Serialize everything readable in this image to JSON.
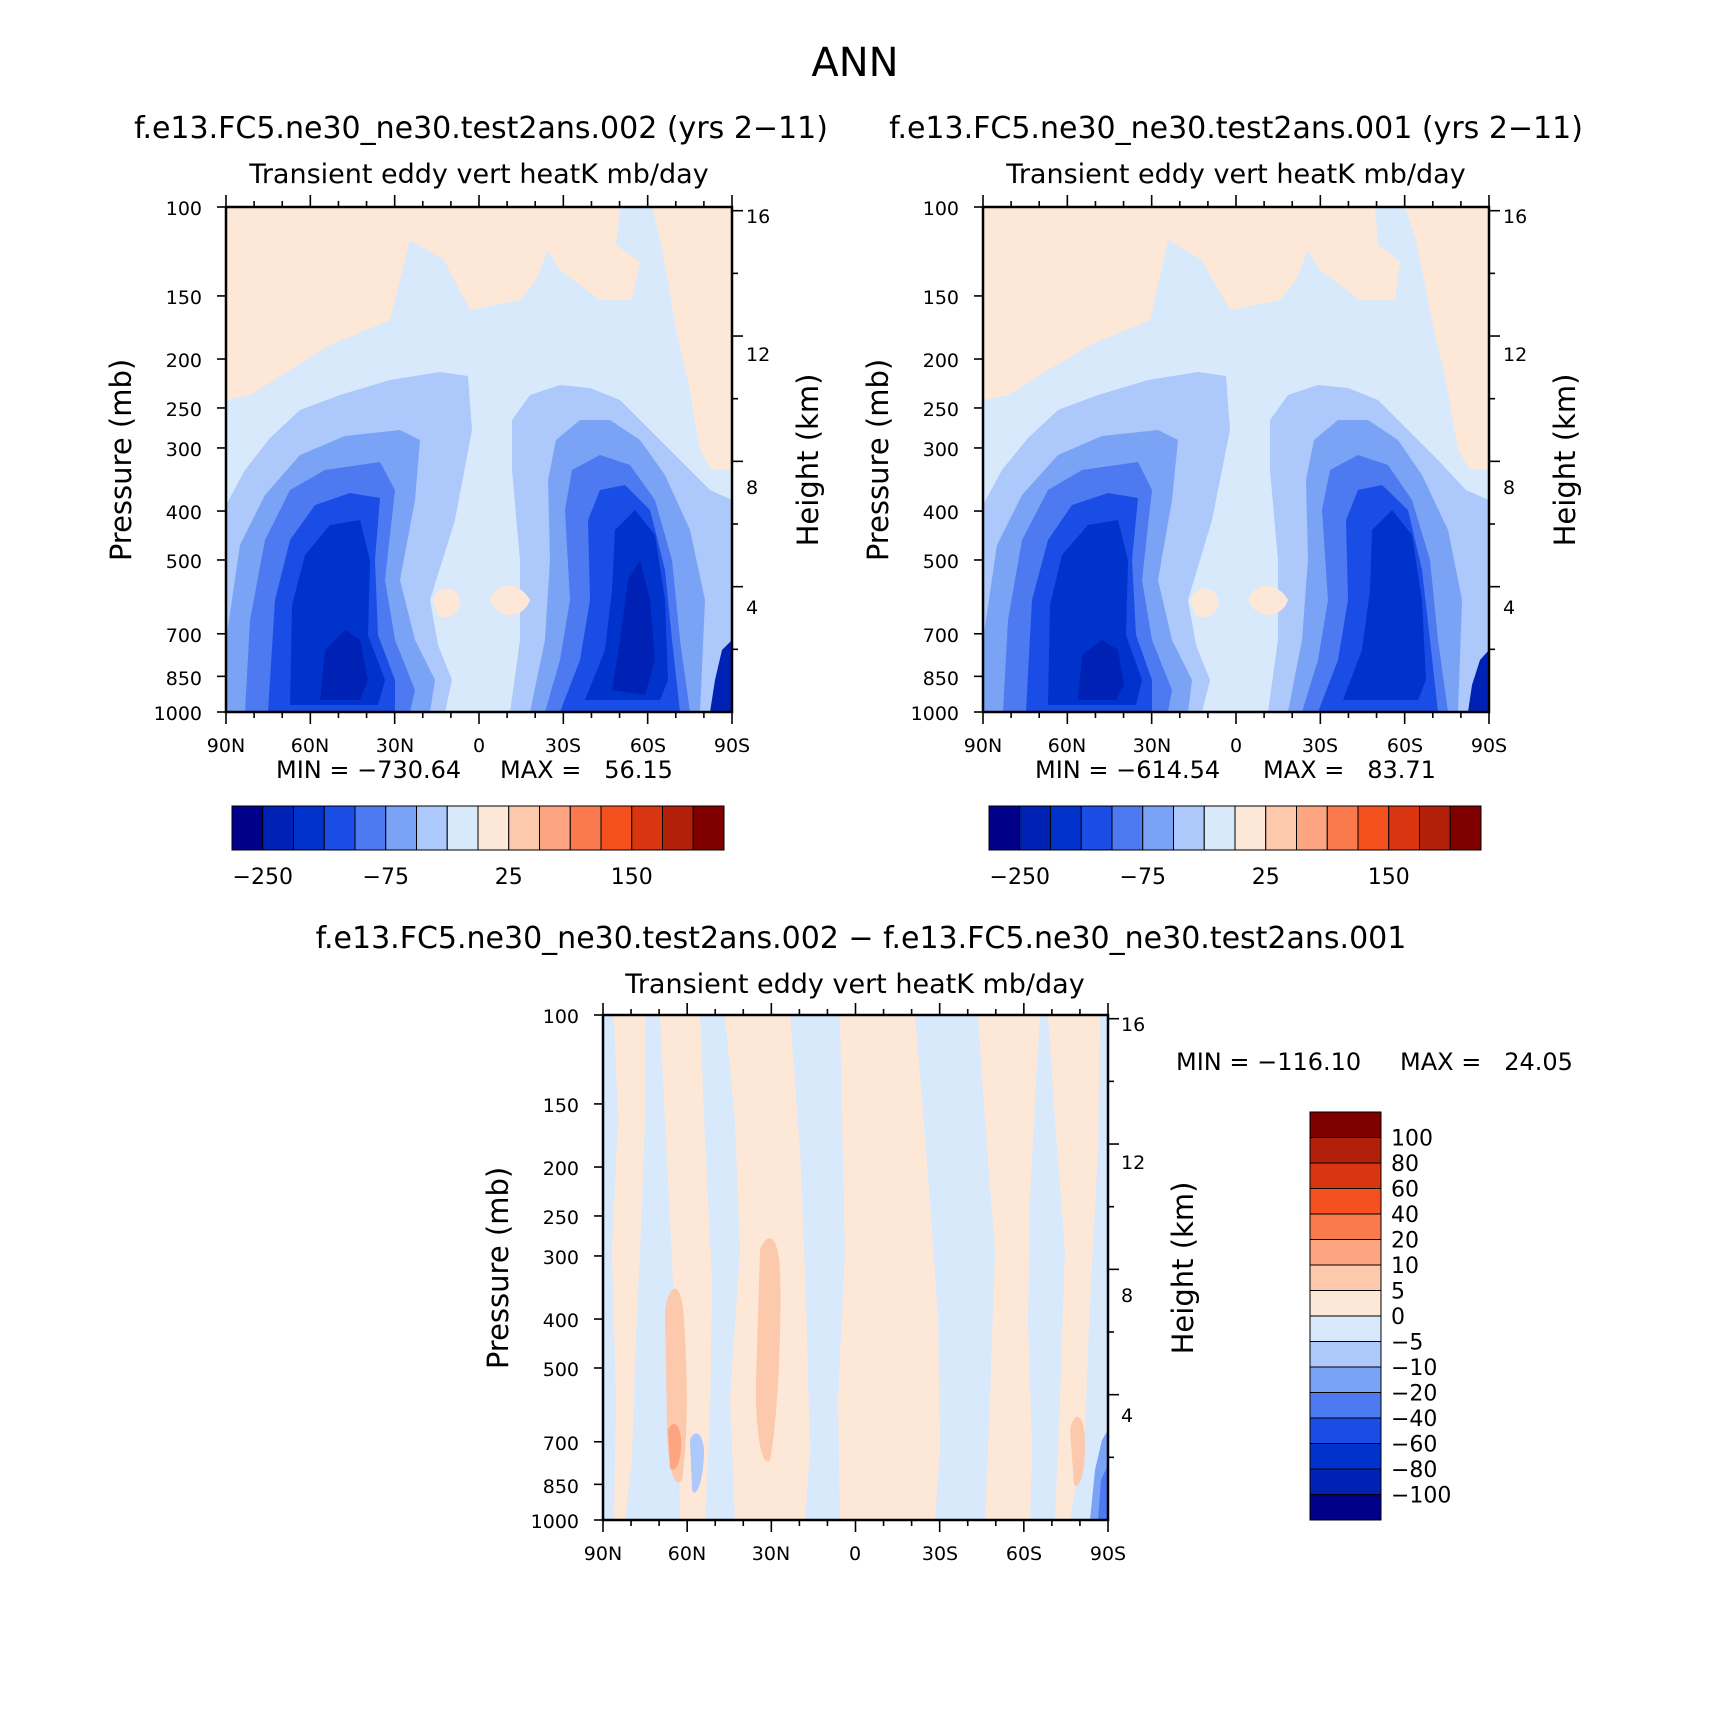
{
  "page_title": "ANN",
  "chart_data": [
    {
      "type": "heatmap",
      "id": "panel_002",
      "title": "f.e13.FC5.ne30_ne30.test2ans.002 (yrs 2−11)",
      "subtitle": "Transient eddy vert heatK mb/day",
      "xlabel": "",
      "ylabel": "Pressure (mb)",
      "y2label": "Height (km)",
      "xticks": [
        "90N",
        "60N",
        "30N",
        "0",
        "30S",
        "60S",
        "90S"
      ],
      "xlim": [
        90,
        -90
      ],
      "ylim": [
        1000,
        100
      ],
      "yscale": "log",
      "yticks": [
        100,
        150,
        200,
        250,
        300,
        400,
        500,
        700,
        850,
        1000
      ],
      "y2ticks": [
        16,
        12,
        8,
        4
      ],
      "min_label": "MIN = −730.64",
      "max_label": "MAX =   56.15",
      "colorbar": {
        "orientation": "horizontal",
        "levels": [
          -250,
          -200,
          -150,
          -100,
          -75,
          -50,
          -25,
          0,
          25,
          50,
          75,
          100,
          150,
          200,
          250
        ],
        "labels": [
          "−250",
          "−75",
          "25",
          "150"
        ],
        "label_levels": [
          -250,
          -75,
          25,
          150
        ],
        "colors": [
          "#00008b",
          "#0022b4",
          "#0033cc",
          "#1a4de6",
          "#4d7af0",
          "#7aa3f5",
          "#adc8fa",
          "#d9e9fc",
          "#fde8d8",
          "#fdc9ad",
          "#fca580",
          "#fb7a4d",
          "#f4511e",
          "#d93510",
          "#b3200a",
          "#800000"
        ]
      },
      "features": [
        {
          "lat": 43,
          "p": 690,
          "value": -600
        },
        {
          "lat": -57,
          "p": 610,
          "value": -500
        },
        {
          "lat": 12,
          "p": 600,
          "value": 20
        },
        {
          "lat": -6,
          "p": 600,
          "value": 20
        }
      ]
    },
    {
      "type": "heatmap",
      "id": "panel_001",
      "title": "f.e13.FC5.ne30_ne30.test2ans.001 (yrs 2−11)",
      "subtitle": "Transient eddy vert heatK mb/day",
      "xlabel": "",
      "ylabel": "Pressure (mb)",
      "y2label": "Height (km)",
      "xticks": [
        "90N",
        "60N",
        "30N",
        "0",
        "30S",
        "60S",
        "90S"
      ],
      "xlim": [
        90,
        -90
      ],
      "ylim": [
        1000,
        100
      ],
      "yscale": "log",
      "yticks": [
        100,
        150,
        200,
        250,
        300,
        400,
        500,
        700,
        850,
        1000
      ],
      "y2ticks": [
        16,
        12,
        8,
        4
      ],
      "min_label": "MIN = −614.54",
      "max_label": "MAX =   83.71",
      "colorbar": {
        "orientation": "horizontal",
        "levels": [
          -250,
          -200,
          -150,
          -100,
          -75,
          -50,
          -25,
          0,
          25,
          50,
          75,
          100,
          150,
          200,
          250
        ],
        "labels": [
          "−250",
          "−75",
          "25",
          "150"
        ],
        "label_levels": [
          -250,
          -75,
          25,
          150
        ],
        "colors": [
          "#00008b",
          "#0022b4",
          "#0033cc",
          "#1a4de6",
          "#4d7af0",
          "#7aa3f5",
          "#adc8fa",
          "#d9e9fc",
          "#fde8d8",
          "#fdc9ad",
          "#fca580",
          "#fb7a4d",
          "#f4511e",
          "#d93510",
          "#b3200a",
          "#800000"
        ]
      },
      "features": [
        {
          "lat": 43,
          "p": 690,
          "value": -520
        },
        {
          "lat": -57,
          "p": 610,
          "value": -450
        },
        {
          "lat": 12,
          "p": 600,
          "value": 20
        },
        {
          "lat": -6,
          "p": 600,
          "value": 20
        }
      ]
    },
    {
      "type": "heatmap",
      "id": "panel_diff",
      "title": "f.e13.FC5.ne30_ne30.test2ans.002 − f.e13.FC5.ne30_ne30.test2ans.001",
      "subtitle": "Transient eddy vert heatK mb/day",
      "xlabel": "",
      "ylabel": "Pressure (mb)",
      "y2label": "Height (km)",
      "xticks": [
        "90N",
        "60N",
        "30N",
        "0",
        "30S",
        "60S",
        "90S"
      ],
      "xlim": [
        90,
        -90
      ],
      "ylim": [
        1000,
        100
      ],
      "yscale": "log",
      "yticks": [
        100,
        150,
        200,
        250,
        300,
        400,
        500,
        700,
        850,
        1000
      ],
      "y2ticks": [
        16,
        12,
        8,
        4
      ],
      "min_label": "MIN = −116.10",
      "max_label": "MAX =   24.05",
      "colorbar": {
        "orientation": "vertical",
        "levels": [
          -100,
          -80,
          -60,
          -40,
          -20,
          -10,
          -5,
          0,
          5,
          10,
          20,
          40,
          60,
          80,
          100
        ],
        "labels": [
          "100",
          "80",
          "60",
          "40",
          "20",
          "10",
          "5",
          "0",
          "−5",
          "−10",
          "−20",
          "−40",
          "−60",
          "−80",
          "−100"
        ],
        "label_levels": [
          100,
          80,
          60,
          40,
          20,
          10,
          5,
          0,
          -5,
          -10,
          -20,
          -40,
          -60,
          -80,
          -100
        ],
        "colors": [
          "#00008b",
          "#0022b4",
          "#0033cc",
          "#1a4de6",
          "#4d7af0",
          "#7aa3f5",
          "#adc8fa",
          "#d9e9fc",
          "#fde8d8",
          "#fdc9ad",
          "#fca580",
          "#fb7a4d",
          "#f4511e",
          "#d93510",
          "#b3200a",
          "#800000"
        ]
      },
      "features": [
        {
          "lat": 62,
          "p": 700,
          "value": 10
        },
        {
          "lat": 28,
          "p": 500,
          "value": 8
        },
        {
          "lat": -80,
          "p": 720,
          "value": 10
        },
        {
          "lat": -88,
          "p": 850,
          "value": -60
        }
      ]
    }
  ]
}
